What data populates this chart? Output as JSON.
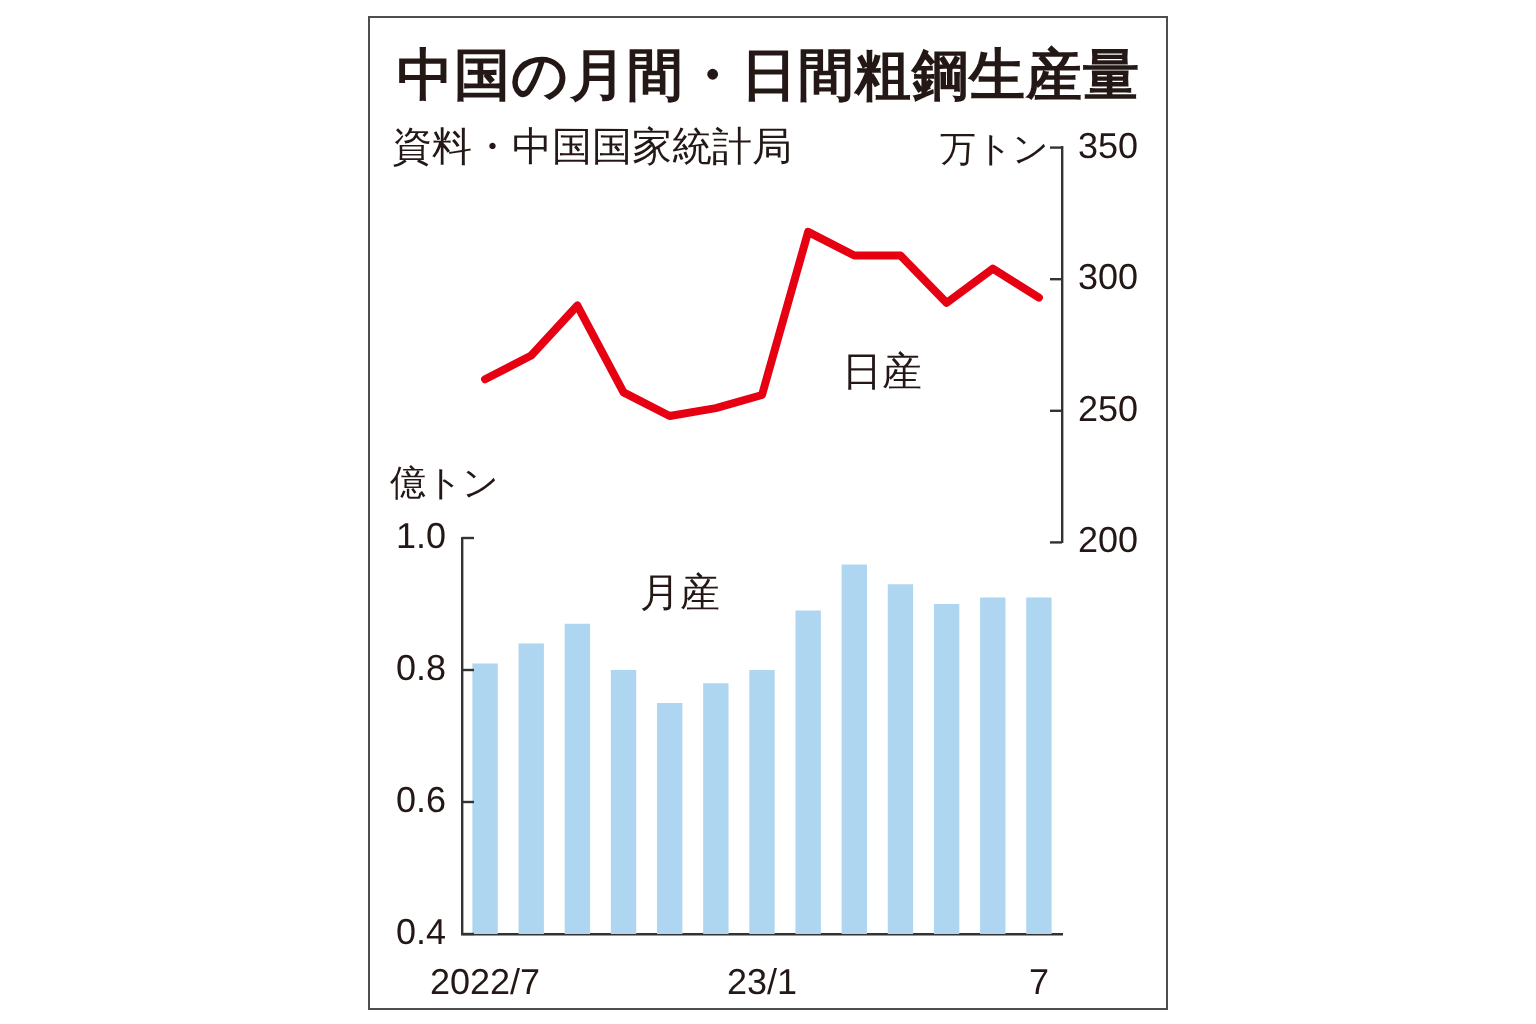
{
  "chart_data": [
    {
      "type": "line",
      "title": "中国の月間・日間粗鋼生産量",
      "annotations": [
        "資料・中国国家統計局"
      ],
      "ylabel": "万トン",
      "categories": [
        null,
        null,
        null,
        null,
        null,
        null,
        null,
        null,
        null,
        null,
        null,
        null,
        null
      ],
      "series": [
        {
          "name": "日産",
          "color": "#e60012",
          "values": [
            262,
            271,
            290,
            257,
            248,
            251,
            256,
            318,
            309,
            309,
            291,
            304,
            293
          ]
        }
      ],
      "ylim": [
        200,
        350
      ],
      "yticks": [
        200,
        250,
        300,
        350
      ],
      "marker": "none",
      "tick_labels": "y"
    },
    {
      "type": "bar",
      "ylabel": "億トン",
      "categories": [
        "2022/7",
        null,
        null,
        null,
        null,
        null,
        "23/1",
        null,
        null,
        null,
        null,
        null,
        "7"
      ],
      "series": [
        {
          "name": "月産",
          "color": "#aed6f1",
          "values": [
            0.81,
            0.84,
            0.87,
            0.8,
            0.75,
            0.78,
            0.8,
            0.89,
            0.96,
            0.93,
            0.9,
            0.91,
            0.91
          ]
        }
      ],
      "ylim": [
        0.4,
        1.0
      ],
      "yticks": [
        0.4,
        0.6,
        0.8,
        {
          "value": 1.0,
          "label": "1.0"
        }
      ]
    }
  ]
}
